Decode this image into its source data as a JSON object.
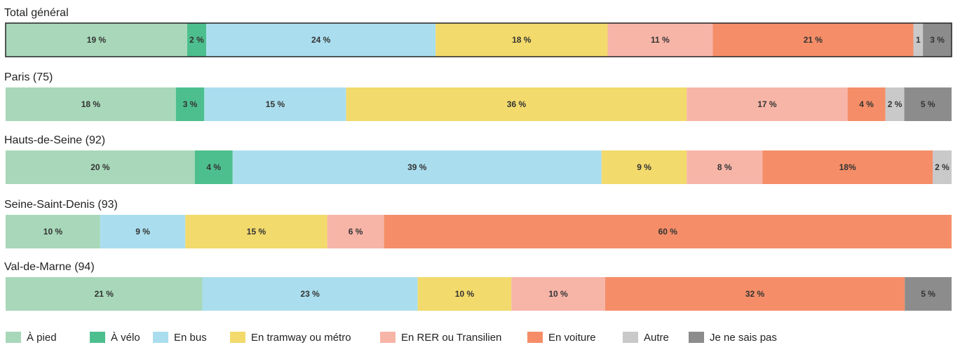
{
  "chart_data": {
    "type": "bar",
    "orientation": "horizontal",
    "stacked": true,
    "categories": [
      "Total général",
      "Paris (75)",
      "Hauts-de-Seine (92)",
      "Seine-Saint-Denis (93)",
      "Val-de-Marne (94)"
    ],
    "series": [
      {
        "name": "À pied",
        "color": "#a8d8b9",
        "values": [
          19,
          18,
          20,
          10,
          21
        ],
        "value_labels": [
          "19 %",
          "18 %",
          "20 %",
          "10 %",
          "21 %"
        ]
      },
      {
        "name": "À vélo",
        "color": "#4dbf8e",
        "values": [
          2,
          3,
          4,
          null,
          null
        ],
        "value_labels": [
          "2 %",
          "3 %",
          "4 %",
          null,
          null
        ]
      },
      {
        "name": "En bus",
        "color": "#aadeee",
        "values": [
          24,
          15,
          39,
          9,
          23
        ],
        "value_labels": [
          "24 %",
          "15 %",
          "39 %",
          "9 %",
          "23 %"
        ]
      },
      {
        "name": "En tramway ou métro",
        "color": "#f2da6c",
        "values": [
          18,
          36,
          9,
          15,
          10
        ],
        "value_labels": [
          "18 %",
          "36 %",
          "9 %",
          "15 %",
          "10 %"
        ]
      },
      {
        "name": "En RER ou Transilien",
        "color": "#f7b5a8",
        "values": [
          11,
          17,
          8,
          6,
          10
        ],
        "value_labels": [
          "11 %",
          "17 %",
          "8 %",
          "6 %",
          "10 %"
        ]
      },
      {
        "name": "En voiture",
        "color": "#f58e68",
        "values": [
          21,
          4,
          18,
          60,
          32
        ],
        "value_labels": [
          "21 %",
          "4 %",
          "18%",
          "60 %",
          "32 %"
        ]
      },
      {
        "name": "Autre",
        "color": "#c9c9c9",
        "values": [
          1,
          2,
          2,
          null,
          null
        ],
        "value_labels": [
          "1",
          "2 %",
          "2 %",
          null,
          null
        ]
      },
      {
        "name": "Je ne sais pas",
        "color": "#8c8c8c",
        "values": [
          3,
          5,
          null,
          null,
          5
        ],
        "value_labels": [
          "3 %",
          "5 %",
          null,
          null,
          "5 %"
        ]
      }
    ]
  }
}
